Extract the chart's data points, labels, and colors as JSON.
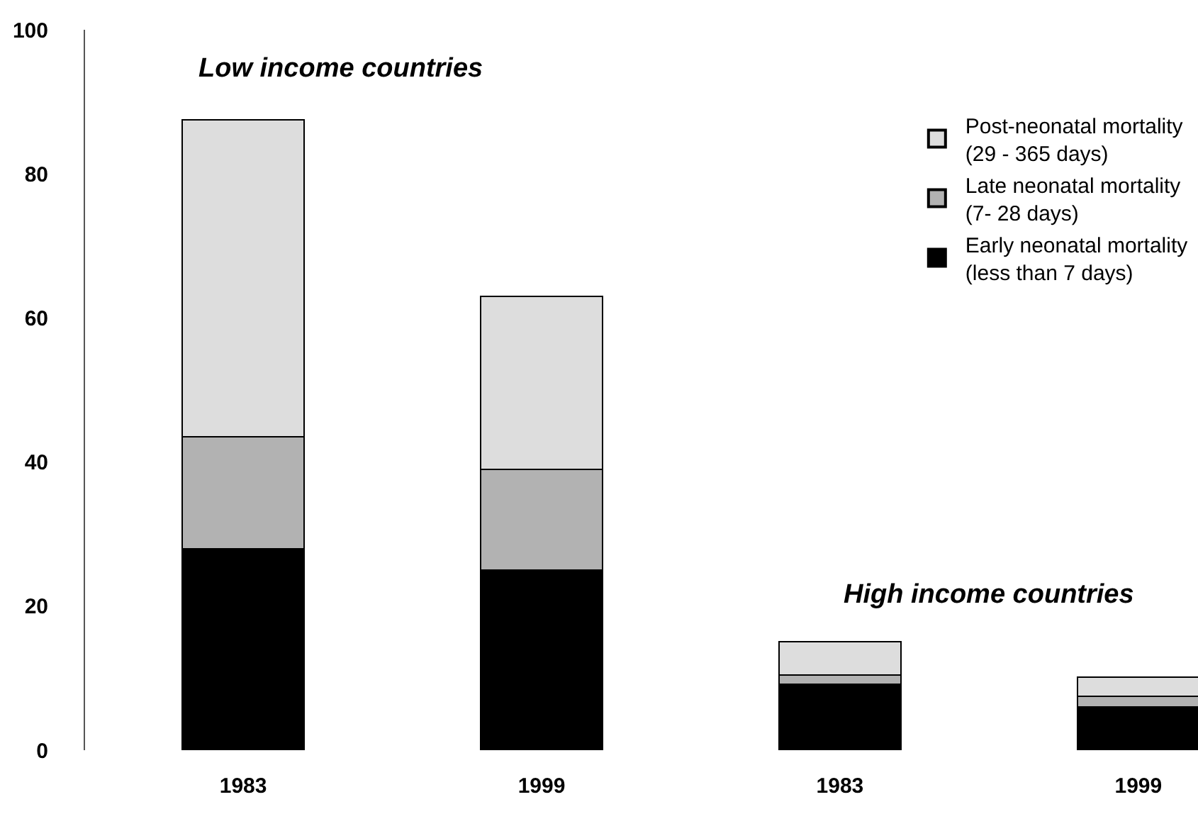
{
  "chart_data": {
    "type": "bar",
    "stacked": true,
    "categories": [
      "1983",
      "1999",
      "1983",
      "1999"
    ],
    "series": [
      {
        "name": "Early neonatal mortality\n(less than 7 days)",
        "color": "#000000",
        "values": [
          28,
          25,
          9.2,
          6
        ]
      },
      {
        "name": "Late neonatal mortality\n(7- 28 days)",
        "color": "#b2b2b2",
        "values": [
          15.5,
          14,
          1.2,
          1.5
        ]
      },
      {
        "name": "Post-neonatal mortality\n(29 - 365 days)",
        "color": "#dddddd",
        "values": [
          44,
          24,
          4.7,
          2.6
        ]
      }
    ],
    "ylim": [
      0,
      100
    ],
    "yticks": [
      0,
      20,
      40,
      60,
      80,
      100
    ],
    "legend": "top right",
    "annotations": [
      "Low income countries",
      "High income countries"
    ]
  }
}
